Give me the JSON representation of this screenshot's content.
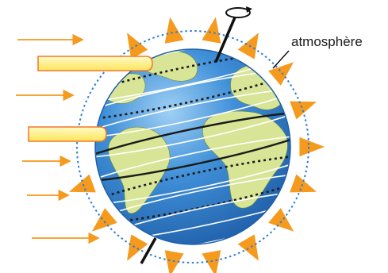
{
  "diagram": {
    "atmosphere_label": "atmosphère",
    "colors": {
      "ocean": "#3f8fd8",
      "ocean_dark": "#1f5fa8",
      "land": "#d8e596",
      "sun_rays": "#f59a1c",
      "highlight_beam": "#fff07a",
      "atmosphere_ring": "#2c7ed6",
      "latitude_lines": "#ffffff",
      "tropic_lines": "#1a1a1a",
      "axis": "#111111"
    },
    "icons": [
      "sunlight-arrow-icon",
      "rotation-arrow-icon",
      "atmosphere-ring-icon"
    ]
  }
}
